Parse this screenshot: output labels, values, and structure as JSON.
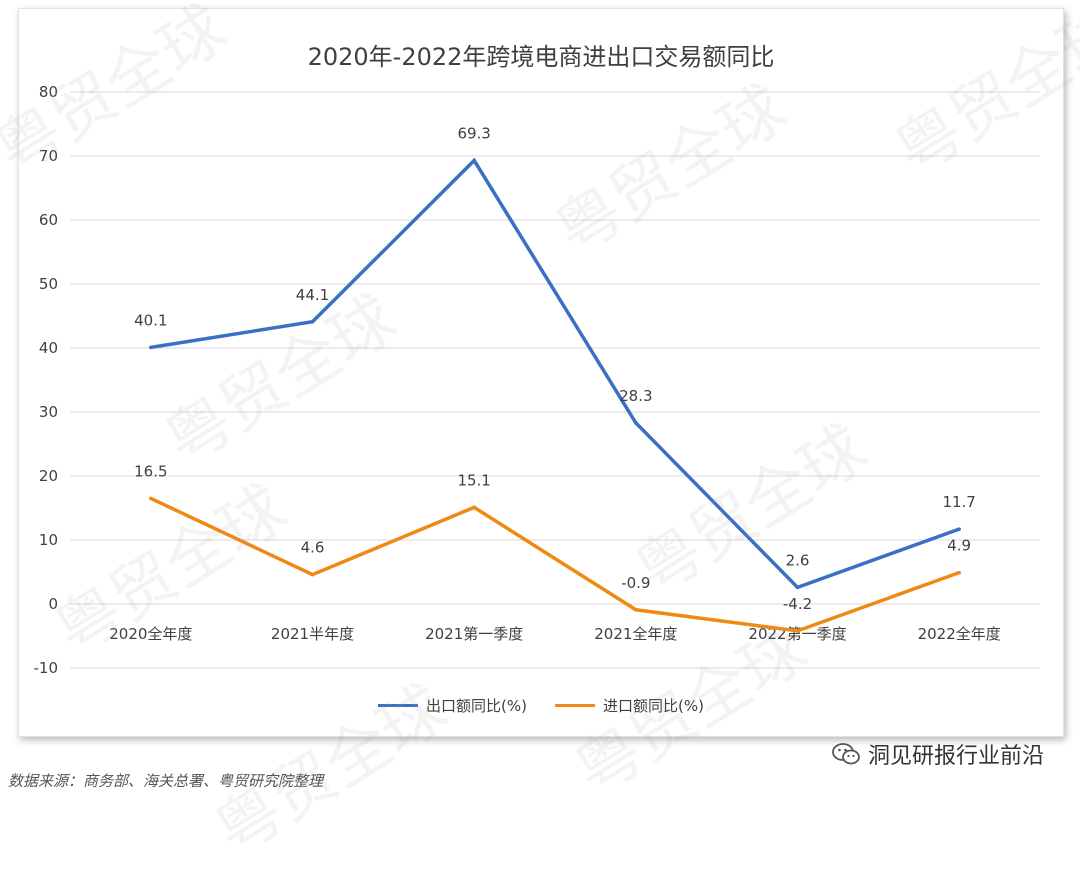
{
  "title": "2020年-2022年跨境电商进出口交易额同比",
  "watermark_text": "粤贸全球",
  "source_note": "数据来源：商务部、海关总署、粤贸研究院整理",
  "brand_label": "洞见研报行业前沿",
  "colors": {
    "export": "#3a70c3",
    "import": "#ee8a14",
    "grid": "#d9d9d9",
    "text": "#404040"
  },
  "chart_data": {
    "type": "line",
    "title": "2020年-2022年跨境电商进出口交易额同比",
    "categories": [
      "2020全年度",
      "2021半年度",
      "2021第一季度",
      "2021全年度",
      "2022第一季度",
      "2022全年度"
    ],
    "series": [
      {
        "name": "出口额同比(%)",
        "values": [
          40.1,
          44.1,
          69.3,
          28.3,
          2.6,
          11.7
        ],
        "labels": [
          "40.1",
          "44.1",
          "69.3",
          "28.3",
          "2.6",
          "11.7"
        ]
      },
      {
        "name": "进口额同比(%)",
        "values": [
          16.5,
          4.6,
          15.1,
          -0.9,
          -4.2,
          4.9
        ],
        "labels": [
          "16.5",
          "4.6",
          "15.1",
          "-0.9",
          "-4.2",
          "4.9"
        ]
      }
    ],
    "yticks": [
      "80",
      "70",
      "60",
      "50",
      "40",
      "30",
      "20",
      "10",
      "0",
      "-10"
    ],
    "ylim": [
      -10,
      80
    ],
    "grid": true,
    "legend_position": "bottom"
  }
}
